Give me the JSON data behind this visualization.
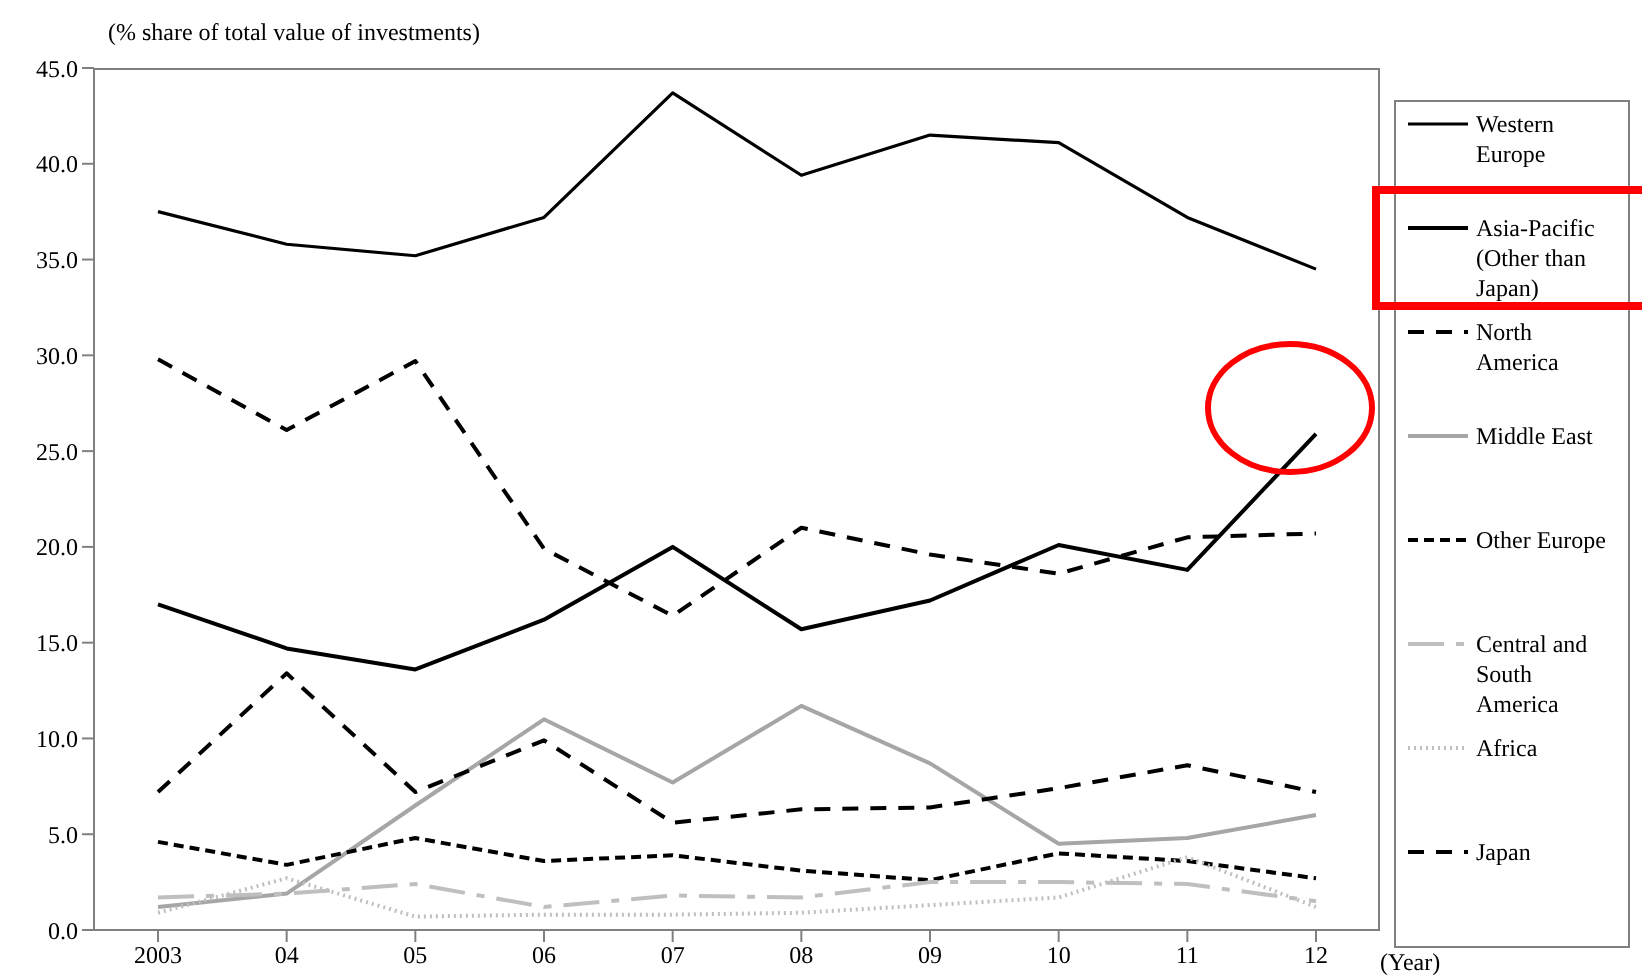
{
  "chart_data": {
    "type": "line",
    "ylabel": "(% share of total value of investments)",
    "xlabel": "(Year)",
    "categories": [
      "2003",
      "04",
      "05",
      "06",
      "07",
      "08",
      "09",
      "10",
      "11",
      "12"
    ],
    "ylim": [
      0,
      45
    ],
    "yticks": [
      {
        "value": 0,
        "label": "0.0"
      },
      {
        "value": 5,
        "label": "5.0"
      },
      {
        "value": 10,
        "label": "10.0"
      },
      {
        "value": 15,
        "label": "15.0"
      },
      {
        "value": 20,
        "label": "20.0"
      },
      {
        "value": 25,
        "label": "25.0"
      },
      {
        "value": 30,
        "label": "30.0"
      },
      {
        "value": 35,
        "label": "35.0"
      },
      {
        "value": 40,
        "label": "40.0"
      },
      {
        "value": 45,
        "label": "45.0"
      }
    ],
    "grid": false,
    "legend": "right",
    "marker": "none",
    "series": [
      {
        "name": "Western Europe",
        "color": "#000000",
        "line_style": "solid",
        "values": [
          37.5,
          35.8,
          35.2,
          37.2,
          43.7,
          39.4,
          41.5,
          41.1,
          37.2,
          34.5
        ]
      },
      {
        "name": "Asia-Pacific (Other than Japan)",
        "color": "#000000",
        "line_style": "solid",
        "values": [
          17.0,
          14.7,
          13.6,
          16.2,
          20.0,
          15.7,
          17.2,
          20.1,
          18.8,
          25.9
        ]
      },
      {
        "name": "North America",
        "color": "#000000",
        "line_style": "dashed",
        "values": [
          29.8,
          26.1,
          29.7,
          19.9,
          16.4,
          21.0,
          19.6,
          18.6,
          20.5,
          20.7
        ]
      },
      {
        "name": "Middle East",
        "color": "#a6a6a6",
        "line_style": "solid",
        "values": [
          1.2,
          1.9,
          6.5,
          11.0,
          7.7,
          11.7,
          8.7,
          4.5,
          4.8,
          6.0
        ]
      },
      {
        "name": "Other Europe",
        "color": "#000000",
        "line_style": "dashed",
        "values": [
          4.6,
          3.4,
          4.8,
          3.6,
          3.9,
          3.1,
          2.6,
          4.0,
          3.6,
          2.7
        ]
      },
      {
        "name": "Central and South America",
        "color": "#bfbfbf",
        "line_style": "dashed",
        "values": [
          1.7,
          1.9,
          2.4,
          1.2,
          1.8,
          1.7,
          2.5,
          2.5,
          2.4,
          1.5
        ]
      },
      {
        "name": "Africa",
        "color": "#bfbfbf",
        "line_style": "dotted",
        "values": [
          0.9,
          2.7,
          0.7,
          0.8,
          0.8,
          0.9,
          1.3,
          1.7,
          3.8,
          1.2
        ]
      },
      {
        "name": "Japan",
        "color": "#000000",
        "line_style": "dashed",
        "values": [
          7.2,
          13.4,
          7.2,
          9.9,
          5.6,
          6.3,
          6.4,
          7.4,
          8.6,
          7.2
        ]
      }
    ]
  }
}
